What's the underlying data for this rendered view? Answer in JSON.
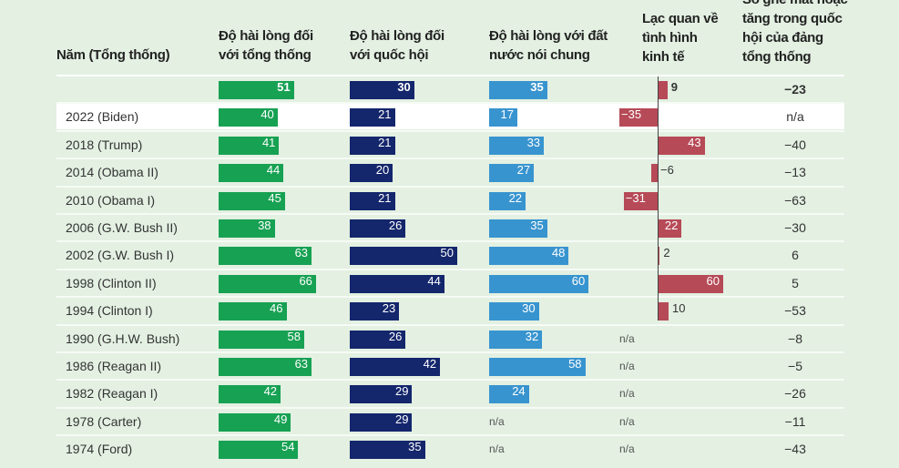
{
  "headers": {
    "year": "Năm (Tổng thống)",
    "president": [
      "Độ hài lòng đối",
      "với tổng thống"
    ],
    "congress": [
      "Độ hài lòng đối",
      "với quốc hội"
    ],
    "country": [
      "Độ hài lòng với đất",
      "nước nói chung"
    ],
    "economy": [
      "Lạc quan về",
      "tình hình",
      "kinh tế"
    ],
    "seats": [
      "Số ghế mất hoặc",
      "tăng trong quốc",
      "hội của đảng",
      "tổng thống"
    ]
  },
  "colors": {
    "president": "#17a153",
    "congress": "#14266c",
    "country": "#3894cf",
    "economy": "#b64a57",
    "background": "#e3f0e2"
  },
  "chart_data": {
    "type": "table",
    "columns": [
      "Năm (Tổng thống)",
      "Độ hài lòng đối với tổng thống",
      "Độ hài lòng đối với quốc hội",
      "Độ hài lòng với đất nước nói chung",
      "Lạc quan về tình hình kinh tế",
      "Số ghế mất hoặc tăng trong quốc hội của đảng tổng thống"
    ],
    "na_label": "n/a",
    "rows": [
      {
        "name": "",
        "president": 51,
        "congress": 30,
        "country": 35,
        "economy": 9,
        "seats": "−23"
      },
      {
        "name": "2022 (Biden)",
        "president": 40,
        "congress": 21,
        "country": 17,
        "economy": -35,
        "seats": "n/a",
        "highlight": true
      },
      {
        "name": "2018 (Trump)",
        "president": 41,
        "congress": 21,
        "country": 33,
        "economy": 43,
        "seats": "−40"
      },
      {
        "name": "2014 (Obama II)",
        "president": 44,
        "congress": 20,
        "country": 27,
        "economy": -6,
        "seats": "−13"
      },
      {
        "name": "2010 (Obama I)",
        "president": 45,
        "congress": 21,
        "country": 22,
        "economy": -31,
        "seats": "−63"
      },
      {
        "name": "2006 (G.W. Bush II)",
        "president": 38,
        "congress": 26,
        "country": 35,
        "economy": 22,
        "seats": "−30"
      },
      {
        "name": "2002 (G.W. Bush I)",
        "president": 63,
        "congress": 50,
        "country": 48,
        "economy": 2,
        "seats": "6"
      },
      {
        "name": "1998 (Clinton II)",
        "president": 66,
        "congress": 44,
        "country": 60,
        "economy": 60,
        "seats": "5"
      },
      {
        "name": "1994 (Clinton I)",
        "president": 46,
        "congress": 23,
        "country": 30,
        "economy": 10,
        "seats": "−53"
      },
      {
        "name": "1990 (G.H.W. Bush)",
        "president": 58,
        "congress": 26,
        "country": 32,
        "economy": null,
        "seats": "−8"
      },
      {
        "name": "1986 (Reagan II)",
        "president": 63,
        "congress": 42,
        "country": 58,
        "economy": null,
        "seats": "−5"
      },
      {
        "name": "1982 (Reagan I)",
        "president": 42,
        "congress": 29,
        "country": 24,
        "economy": null,
        "seats": "−26"
      },
      {
        "name": "1978 (Carter)",
        "president": 49,
        "congress": 29,
        "country": null,
        "economy": null,
        "seats": "−11"
      },
      {
        "name": "1974 (Ford)",
        "president": 54,
        "congress": 35,
        "country": null,
        "economy": null,
        "seats": "−43"
      }
    ]
  }
}
